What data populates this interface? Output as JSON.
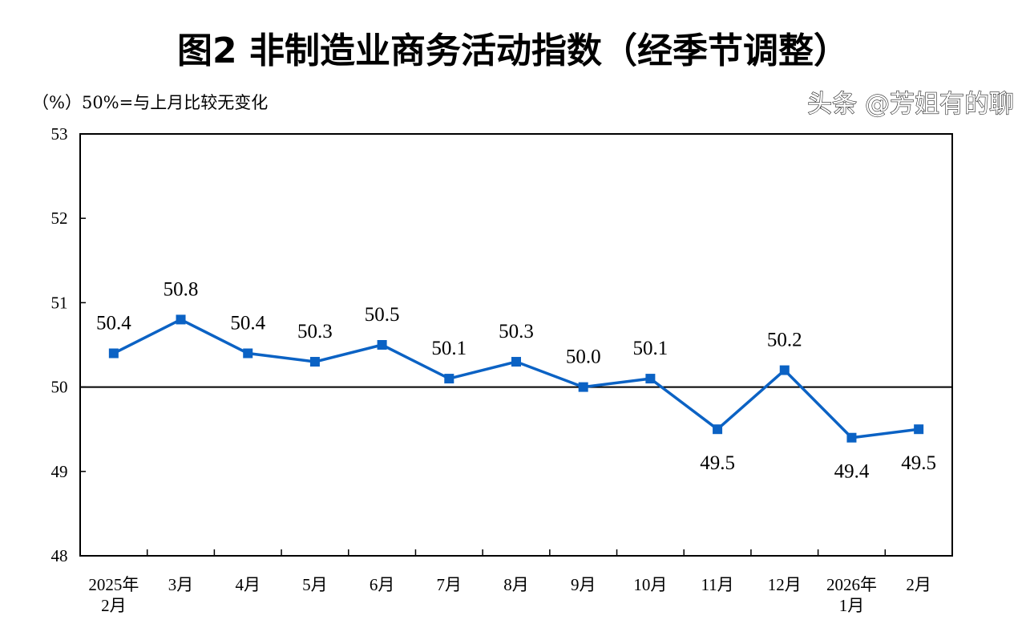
{
  "chart_data": {
    "type": "line",
    "title": "图2  非制造业商务活动指数（经季节调整）",
    "ylabel": "（%）50%=与上月比较无变化",
    "xlabel": "",
    "categories": [
      [
        "2025年",
        "2月"
      ],
      [
        "3月"
      ],
      [
        "4月"
      ],
      [
        "5月"
      ],
      [
        "6月"
      ],
      [
        "7月"
      ],
      [
        "8月"
      ],
      [
        "9月"
      ],
      [
        "10月"
      ],
      [
        "11月"
      ],
      [
        "12月"
      ],
      [
        "2026年",
        "1月"
      ],
      [
        "2月"
      ]
    ],
    "series": [
      {
        "name": "非制造业商务活动指数",
        "values": [
          50.4,
          50.8,
          50.4,
          50.3,
          50.5,
          50.1,
          50.3,
          50.0,
          50.1,
          49.5,
          50.2,
          49.4,
          49.5
        ],
        "color": "#0b62c4"
      }
    ],
    "data_labels": [
      "50.4",
      "50.8",
      "50.4",
      "50.3",
      "50.5",
      "50.1",
      "50.3",
      "50.0",
      "50.1",
      "49.5",
      "50.2",
      "49.4",
      "49.5"
    ],
    "ylim": [
      48,
      53
    ],
    "yticks": [
      48,
      49,
      50,
      51,
      52,
      53
    ],
    "reference_line": 50,
    "grid": false,
    "legend": "none"
  },
  "watermark": "头条 @芳姐有的聊"
}
